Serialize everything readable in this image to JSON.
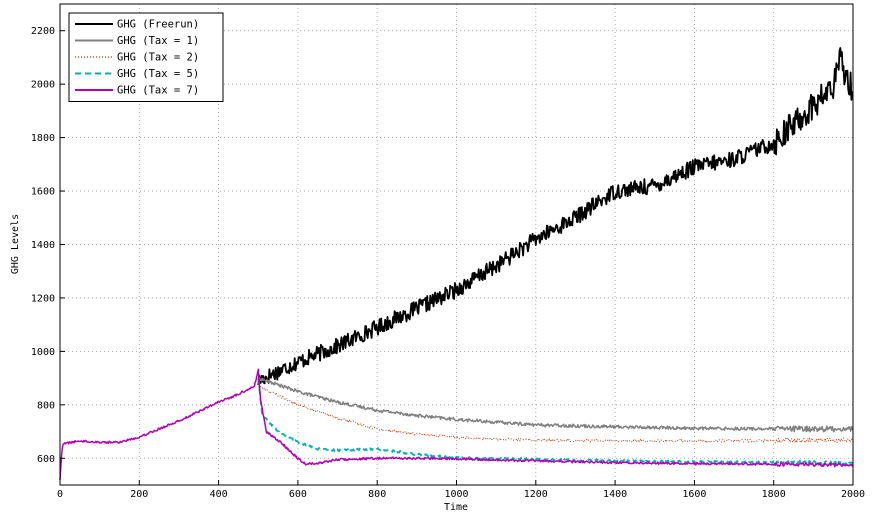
{
  "chart_data": {
    "type": "line",
    "title": "",
    "xlabel": "Time",
    "ylabel": "GHG Levels",
    "xlim": [
      0,
      2000
    ],
    "ylim": [
      500,
      2300
    ],
    "xticks": [
      0,
      200,
      400,
      600,
      800,
      1000,
      1200,
      1400,
      1600,
      1800,
      2000
    ],
    "yticks": [
      600,
      800,
      1000,
      1200,
      1400,
      1600,
      1800,
      2000,
      2200
    ],
    "grid": true,
    "legend_position": "top-left",
    "series": [
      {
        "name": "GHG (Freerun)",
        "color": "#000000",
        "style": "solid",
        "noise": 30,
        "x": [
          500,
          600,
          700,
          800,
          900,
          1000,
          1100,
          1200,
          1300,
          1400,
          1500,
          1600,
          1700,
          1800,
          1900,
          1950,
          1970,
          1980,
          2000
        ],
        "y": [
          890,
          960,
          1020,
          1090,
          1160,
          1230,
          1320,
          1420,
          1500,
          1600,
          1620,
          1690,
          1720,
          1780,
          1920,
          1990,
          2100,
          2040,
          1980
        ]
      },
      {
        "name": "GHG (Tax = 1)",
        "color": "#808080",
        "style": "solid",
        "noise": 6,
        "x": [
          500,
          600,
          700,
          800,
          900,
          1000,
          1100,
          1200,
          1400,
          1600,
          1800,
          2000
        ],
        "y": [
          900,
          850,
          810,
          780,
          760,
          745,
          735,
          725,
          718,
          712,
          710,
          710
        ]
      },
      {
        "name": "GHG (Tax = 2)",
        "color": "#cc3300",
        "style": "dotted",
        "noise": 5,
        "x": [
          500,
          600,
          700,
          800,
          900,
          1000,
          1100,
          1200,
          1400,
          1600,
          1800,
          2000
        ],
        "y": [
          870,
          800,
          750,
          710,
          690,
          678,
          672,
          668,
          666,
          665,
          666,
          668
        ]
      },
      {
        "name": "GHG (Tax = 5)",
        "color": "#00b3b3",
        "style": "dashed",
        "noise": 4,
        "x": [
          500,
          510,
          550,
          600,
          650,
          700,
          800,
          900,
          1000,
          1200,
          1400,
          1600,
          1800,
          2000
        ],
        "y": [
          900,
          760,
          700,
          660,
          635,
          630,
          635,
          615,
          602,
          596,
          590,
          587,
          585,
          583
        ]
      },
      {
        "name": "GHG (Tax = 7)",
        "color": "#b300b3",
        "style": "solid",
        "noise": 4,
        "x": [
          0,
          5,
          10,
          50,
          100,
          150,
          200,
          250,
          300,
          350,
          400,
          450,
          490,
          500,
          505,
          520,
          560,
          600,
          620,
          650,
          700,
          800,
          900,
          1000,
          1200,
          1400,
          1600,
          1800,
          2000
        ],
        "y": [
          520,
          640,
          655,
          665,
          660,
          660,
          680,
          710,
          740,
          775,
          810,
          840,
          870,
          930,
          830,
          700,
          655,
          600,
          578,
          582,
          595,
          600,
          600,
          598,
          590,
          584,
          580,
          578,
          575
        ]
      }
    ]
  }
}
